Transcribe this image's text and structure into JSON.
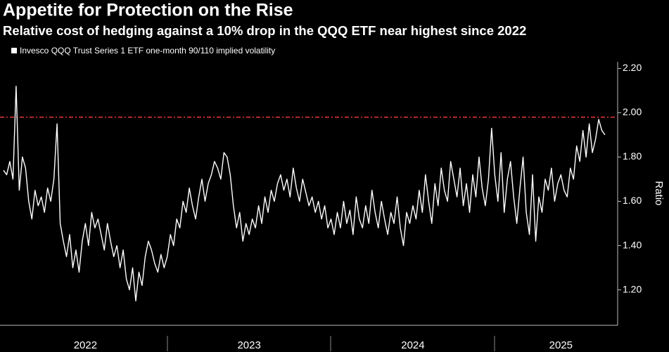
{
  "chart_data": {
    "type": "line",
    "title": "Appetite for Protection on the Rise",
    "subtitle": "Relative cost of hedging against a 10% drop in the QQQ ETF near highest since 2022",
    "y_label": "Ratio",
    "ylim": [
      1.04,
      2.23
    ],
    "yticks": [
      {
        "value": 1.2,
        "label": "1.20"
      },
      {
        "value": 1.4,
        "label": "1.40"
      },
      {
        "value": 1.6,
        "label": "1.60"
      },
      {
        "value": 1.8,
        "label": "1.80"
      },
      {
        "value": 2.0,
        "label": "2.00"
      },
      {
        "value": 2.2,
        "label": "2.20"
      }
    ],
    "reference_line": {
      "value": 1.98,
      "color": "#e53935"
    },
    "categories": [
      null,
      null,
      null,
      null,
      null,
      null,
      null,
      null,
      null,
      null,
      null,
      null,
      null,
      null,
      null,
      null,
      null,
      null,
      null,
      null,
      null,
      null,
      null,
      null,
      null,
      null,
      "2022",
      null,
      null,
      null,
      null,
      null,
      null,
      null,
      null,
      null,
      null,
      null,
      null,
      null,
      null,
      null,
      null,
      null,
      null,
      null,
      null,
      null,
      null,
      null,
      null,
      null,
      null,
      null,
      null,
      null,
      null,
      null,
      null,
      null,
      null,
      null,
      null,
      null,
      null,
      null,
      null,
      null,
      null,
      null,
      null,
      null,
      null,
      null,
      null,
      null,
      null,
      null,
      "2023",
      null,
      null,
      null,
      null,
      null,
      null,
      null,
      null,
      null,
      null,
      null,
      null,
      null,
      null,
      null,
      null,
      null,
      null,
      null,
      null,
      null,
      null,
      null,
      null,
      null,
      null,
      null,
      null,
      null,
      null,
      null,
      null,
      null,
      null,
      null,
      null,
      null,
      null,
      null,
      null,
      null,
      null,
      null,
      null,
      null,
      null,
      null,
      null,
      null,
      null,
      null,
      "2024",
      null,
      null,
      null,
      null,
      null,
      null,
      null,
      null,
      null,
      null,
      null,
      null,
      null,
      null,
      null,
      null,
      null,
      null,
      null,
      null,
      null,
      null,
      null,
      null,
      null,
      null,
      null,
      null,
      null,
      null,
      null,
      null,
      null,
      null,
      null,
      null,
      null,
      null,
      null,
      null,
      null,
      null,
      null,
      null,
      null,
      null,
      "2025",
      null,
      null,
      null,
      null,
      null,
      null,
      null,
      null,
      null,
      null,
      null,
      null,
      null,
      null
    ],
    "series": [
      {
        "name": "Invesco QQQ Trust Series 1 ETF one-month 90/110 implied volatility",
        "color": "#ffffff",
        "values": [
          1.74,
          1.72,
          1.78,
          1.7,
          2.12,
          1.65,
          1.8,
          1.75,
          1.6,
          1.52,
          1.65,
          1.58,
          1.62,
          1.55,
          1.66,
          1.6,
          1.7,
          1.95,
          1.5,
          1.42,
          1.35,
          1.45,
          1.3,
          1.38,
          1.28,
          1.42,
          1.5,
          1.4,
          1.55,
          1.48,
          1.52,
          1.45,
          1.38,
          1.5,
          1.42,
          1.35,
          1.4,
          1.3,
          1.38,
          1.25,
          1.2,
          1.3,
          1.15,
          1.28,
          1.22,
          1.35,
          1.42,
          1.38,
          1.32,
          1.28,
          1.36,
          1.3,
          1.35,
          1.45,
          1.4,
          1.52,
          1.48,
          1.6,
          1.55,
          1.66,
          1.58,
          1.52,
          1.62,
          1.7,
          1.6,
          1.68,
          1.72,
          1.78,
          1.75,
          1.7,
          1.82,
          1.8,
          1.72,
          1.58,
          1.48,
          1.55,
          1.42,
          1.5,
          1.45,
          1.52,
          1.48,
          1.58,
          1.5,
          1.62,
          1.55,
          1.65,
          1.6,
          1.68,
          1.72,
          1.65,
          1.7,
          1.62,
          1.75,
          1.66,
          1.6,
          1.7,
          1.64,
          1.58,
          1.62,
          1.55,
          1.6,
          1.52,
          1.58,
          1.48,
          1.52,
          1.45,
          1.55,
          1.48,
          1.6,
          1.5,
          1.56,
          1.45,
          1.62,
          1.52,
          1.48,
          1.58,
          1.5,
          1.65,
          1.55,
          1.48,
          1.6,
          1.52,
          1.45,
          1.55,
          1.5,
          1.62,
          1.48,
          1.4,
          1.55,
          1.5,
          1.58,
          1.52,
          1.65,
          1.55,
          1.72,
          1.6,
          1.5,
          1.68,
          1.58,
          1.75,
          1.65,
          1.6,
          1.78,
          1.7,
          1.62,
          1.75,
          1.58,
          1.68,
          1.55,
          1.72,
          1.62,
          1.8,
          1.66,
          1.58,
          1.7,
          1.93,
          1.72,
          1.6,
          1.82,
          1.55,
          1.7,
          1.78,
          1.62,
          1.5,
          1.66,
          1.8,
          1.55,
          1.45,
          1.72,
          1.42,
          1.62,
          1.55,
          1.7,
          1.65,
          1.75,
          1.6,
          1.68,
          1.72,
          1.65,
          1.62,
          1.75,
          1.7,
          1.85,
          1.78,
          1.92,
          1.8,
          1.95,
          1.82,
          1.88,
          1.97,
          1.92,
          1.9
        ]
      }
    ]
  }
}
